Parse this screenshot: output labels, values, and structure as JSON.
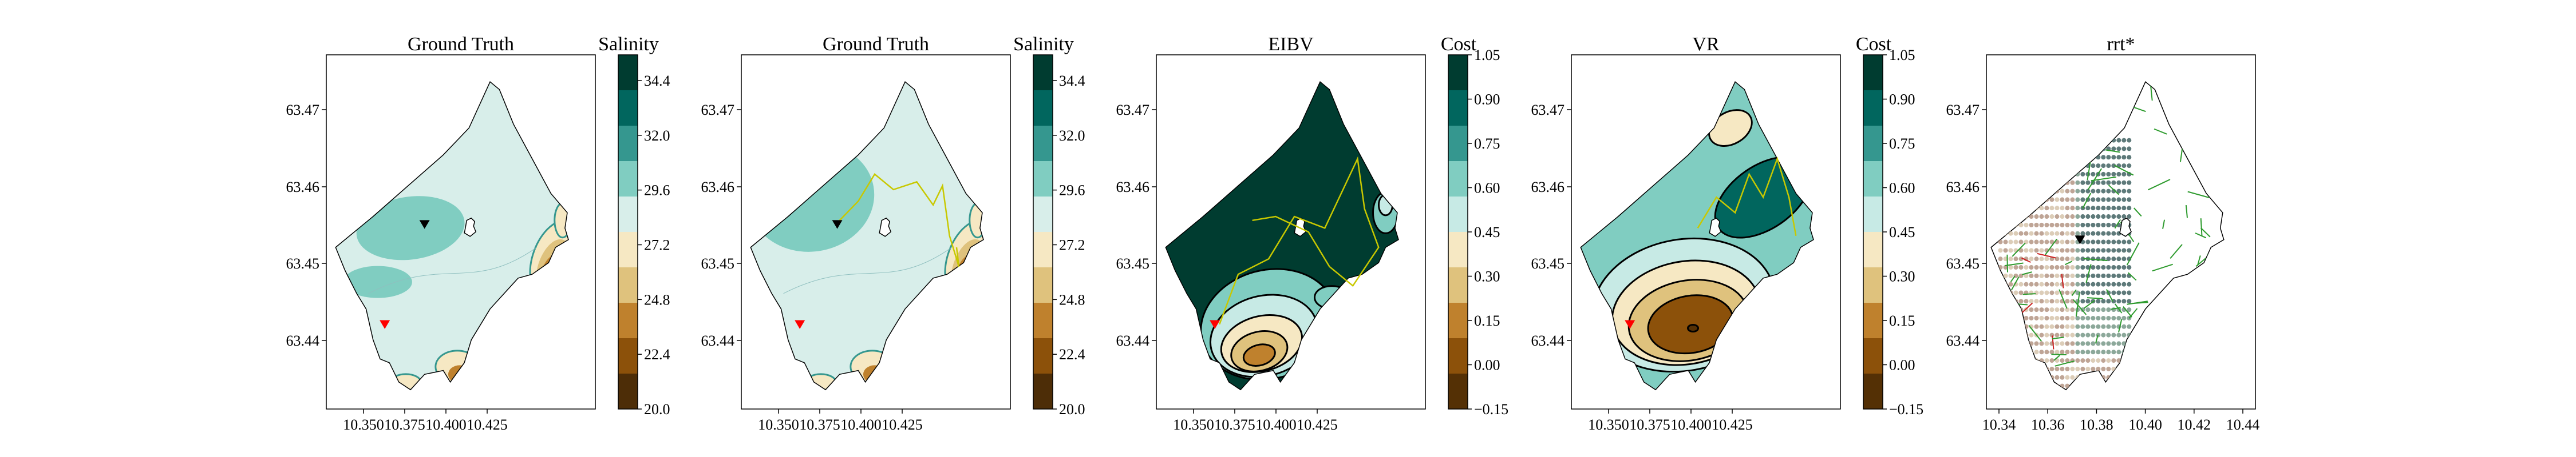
{
  "palette": {
    "salinity_levels": [
      "#4d2d07",
      "#8c510a",
      "#bf812d",
      "#dfc27d",
      "#f6e8c3",
      "#d8eeea",
      "#80cdc1",
      "#35978f",
      "#01665e",
      "#003c30"
    ],
    "cost_levels": [
      "#543005",
      "#8c510a",
      "#bf812d",
      "#dfc27d",
      "#f6e8c3",
      "#c7eae5",
      "#80cdc1",
      "#35978f",
      "#01665e",
      "#003c30"
    ],
    "path_color": "#c8c800",
    "marker_red": "#ff0000",
    "marker_black": "#000000",
    "tree_color": "#2e9b2e",
    "tree_red": "#cc2222"
  },
  "panels": [
    {
      "title": "Ground Truth",
      "colorbar_label": "Salinity",
      "colorbar_ticks": [
        "34.4",
        "32.0",
        "29.6",
        "27.2",
        "24.8",
        "22.4",
        "20.0"
      ]
    },
    {
      "title": "Ground Truth",
      "colorbar_label": "Salinity",
      "colorbar_ticks": [
        "34.4",
        "32.0",
        "29.6",
        "27.2",
        "24.8",
        "22.4",
        "20.0"
      ]
    },
    {
      "title": "EIBV",
      "colorbar_label": "Cost",
      "colorbar_ticks": [
        "1.05",
        "0.90",
        "0.75",
        "0.60",
        "0.45",
        "0.30",
        "0.15",
        "0.00",
        "−0.15"
      ]
    },
    {
      "title": "VR",
      "colorbar_label": "Cost",
      "colorbar_ticks": [
        "1.05",
        "0.90",
        "0.75",
        "0.60",
        "0.45",
        "0.30",
        "0.15",
        "0.00",
        "−0.15"
      ]
    },
    {
      "title": "rrt*"
    }
  ],
  "chart_data": [
    {
      "type": "heatmap",
      "title": "Ground Truth",
      "xlabel": "",
      "ylabel": "",
      "xticks": [
        "10.350",
        "10.375",
        "10.400",
        "10.425"
      ],
      "yticks": [
        "63.47",
        "63.46",
        "63.45",
        "63.44"
      ],
      "xlim": [
        10.33,
        10.445
      ],
      "ylim": [
        63.43,
        63.476
      ],
      "colorbar": {
        "label": "Salinity",
        "range": [
          20.0,
          34.4
        ]
      },
      "markers": [
        {
          "symbol": "triangle-down",
          "color": "red",
          "x": 10.355,
          "y": 63.441
        },
        {
          "symbol": "triangle-down",
          "color": "black",
          "x": 10.372,
          "y": 63.454
        }
      ]
    },
    {
      "type": "heatmap",
      "title": "Ground Truth",
      "xlabel": "",
      "ylabel": "",
      "xticks": [
        "10.350",
        "10.375",
        "10.400",
        "10.425"
      ],
      "yticks": [
        "63.47",
        "63.46",
        "63.45",
        "63.44"
      ],
      "xlim": [
        10.33,
        10.445
      ],
      "ylim": [
        63.43,
        63.476
      ],
      "colorbar": {
        "label": "Salinity",
        "range": [
          20.0,
          34.4
        ]
      },
      "markers": [
        {
          "symbol": "triangle-down",
          "color": "red",
          "x": 10.355,
          "y": 63.441
        },
        {
          "symbol": "triangle-down",
          "color": "black",
          "x": 10.371,
          "y": 63.454
        }
      ]
    },
    {
      "type": "heatmap",
      "title": "EIBV",
      "xlabel": "",
      "ylabel": "",
      "xticks": [
        "10.350",
        "10.375",
        "10.400",
        "10.425"
      ],
      "yticks": [
        "63.47",
        "63.46",
        "63.45",
        "63.44"
      ],
      "xlim": [
        10.33,
        10.445
      ],
      "ylim": [
        63.43,
        63.476
      ],
      "colorbar": {
        "label": "Cost",
        "range": [
          -0.15,
          1.05
        ]
      },
      "markers": [
        {
          "symbol": "triangle-down",
          "color": "red",
          "x": 10.355,
          "y": 63.441
        }
      ]
    },
    {
      "type": "heatmap",
      "title": "VR",
      "xlabel": "",
      "ylabel": "",
      "xticks": [
        "10.350",
        "10.375",
        "10.400",
        "10.425"
      ],
      "yticks": [
        "63.47",
        "63.46",
        "63.45",
        "63.44"
      ],
      "xlim": [
        10.33,
        10.445
      ],
      "ylim": [
        63.43,
        63.476
      ],
      "colorbar": {
        "label": "Cost",
        "range": [
          -0.15,
          1.05
        ]
      },
      "markers": [
        {
          "symbol": "triangle-down",
          "color": "red",
          "x": 10.355,
          "y": 63.441
        }
      ]
    },
    {
      "type": "scatter",
      "title": "rrt*",
      "xlabel": "",
      "ylabel": "",
      "xticks": [
        "10.34",
        "10.36",
        "10.38",
        "10.40",
        "10.42",
        "10.44"
      ],
      "yticks": [
        "63.47",
        "63.46",
        "63.45",
        "63.44"
      ],
      "xlim": [
        10.332,
        10.447
      ],
      "ylim": [
        63.43,
        63.476
      ],
      "markers": [
        {
          "symbol": "triangle-down",
          "color": "black",
          "x": 10.372,
          "y": 63.452
        }
      ]
    }
  ]
}
